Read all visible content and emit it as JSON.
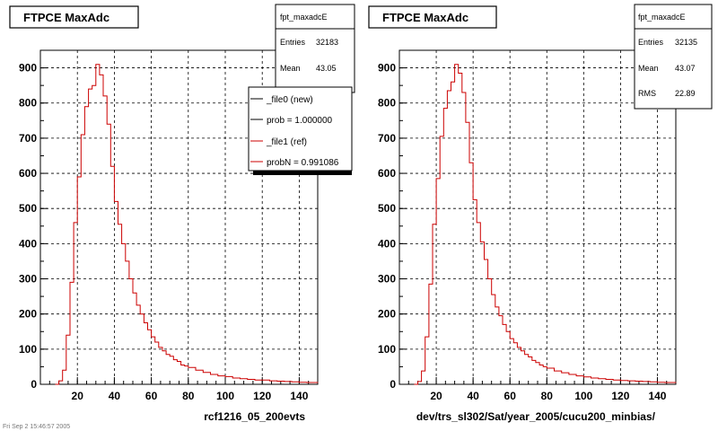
{
  "colors": {
    "new": "#000000",
    "ref": "#cc0000",
    "grid": "#000000"
  },
  "footer": {
    "text": "Fri Sep 2 15:46:57 2005"
  },
  "legend": {
    "entries": [
      {
        "label": "_file0 (new)",
        "color": "#000000"
      },
      {
        "label": "prob = 1.000000",
        "color": "#000000"
      },
      {
        "label": "_file1 (ref)",
        "color": "#cc0000"
      },
      {
        "label": "probN = 0.991086",
        "color": "#cc0000"
      }
    ]
  },
  "chart_data": [
    {
      "type": "bar",
      "title": "FTPCE MaxAdc",
      "stats": {
        "name": "fpt_maxadcE",
        "rows": [
          {
            "k": "Entries",
            "v": "32183"
          },
          {
            "k": "Mean",
            "v": "43.05"
          }
        ]
      },
      "xlabel": "rcf1216_05_200evts",
      "xlim": [
        0,
        150
      ],
      "ylim": [
        0,
        950
      ],
      "xticks": [
        20,
        40,
        60,
        80,
        100,
        120,
        140
      ],
      "yticks": [
        0,
        100,
        200,
        300,
        400,
        500,
        600,
        700,
        800,
        900
      ],
      "grid": true,
      "series": [
        {
          "name": "_file1 (ref)",
          "color": "#cc0000",
          "x": [
            8,
            10,
            12,
            14,
            16,
            18,
            20,
            22,
            24,
            26,
            28,
            30,
            32,
            34,
            36,
            38,
            40,
            42,
            44,
            46,
            48,
            50,
            52,
            54,
            56,
            58,
            60,
            62,
            64,
            66,
            68,
            70,
            72,
            74,
            76,
            78,
            80,
            84,
            88,
            92,
            96,
            100,
            104,
            108,
            112,
            116,
            120,
            124,
            128,
            132,
            136,
            140,
            144,
            148,
            150
          ],
          "y": [
            0,
            10,
            40,
            140,
            290,
            460,
            590,
            710,
            790,
            840,
            850,
            910,
            880,
            820,
            740,
            620,
            520,
            455,
            400,
            350,
            300,
            260,
            225,
            200,
            175,
            155,
            135,
            120,
            105,
            95,
            85,
            80,
            70,
            65,
            55,
            52,
            48,
            40,
            34,
            28,
            24,
            22,
            18,
            16,
            14,
            12,
            12,
            10,
            9,
            8,
            7,
            6,
            5,
            5,
            4
          ]
        }
      ]
    },
    {
      "type": "bar",
      "title": "FTPCE MaxAdc",
      "stats": {
        "name": "fpt_maxadcE",
        "rows": [
          {
            "k": "Entries",
            "v": "32135"
          },
          {
            "k": "Mean",
            "v": "43.07"
          },
          {
            "k": "RMS",
            "v": "22.89"
          }
        ]
      },
      "xlabel": "dev/trs_sl302/Sat/year_2005/cucu200_minbias/",
      "xlim": [
        0,
        150
      ],
      "ylim": [
        0,
        950
      ],
      "xticks": [
        20,
        40,
        60,
        80,
        100,
        120,
        140
      ],
      "yticks": [
        0,
        100,
        200,
        300,
        400,
        500,
        600,
        700,
        800,
        900
      ],
      "grid": true,
      "series": [
        {
          "color": "#cc0000",
          "x": [
            8,
            10,
            12,
            14,
            16,
            18,
            20,
            22,
            24,
            26,
            28,
            30,
            32,
            34,
            36,
            38,
            40,
            42,
            44,
            46,
            48,
            50,
            52,
            54,
            56,
            58,
            60,
            62,
            64,
            66,
            68,
            70,
            72,
            74,
            76,
            78,
            80,
            84,
            88,
            92,
            96,
            100,
            104,
            108,
            112,
            116,
            120,
            124,
            128,
            132,
            136,
            140,
            144,
            148,
            150
          ],
          "y": [
            0,
            8,
            38,
            135,
            285,
            455,
            585,
            705,
            785,
            835,
            860,
            910,
            885,
            830,
            745,
            630,
            525,
            460,
            405,
            355,
            300,
            255,
            220,
            195,
            170,
            150,
            130,
            118,
            105,
            95,
            85,
            78,
            68,
            62,
            55,
            50,
            46,
            38,
            33,
            28,
            24,
            21,
            18,
            16,
            14,
            12,
            11,
            10,
            9,
            8,
            7,
            6,
            5,
            5,
            4
          ]
        }
      ]
    }
  ]
}
